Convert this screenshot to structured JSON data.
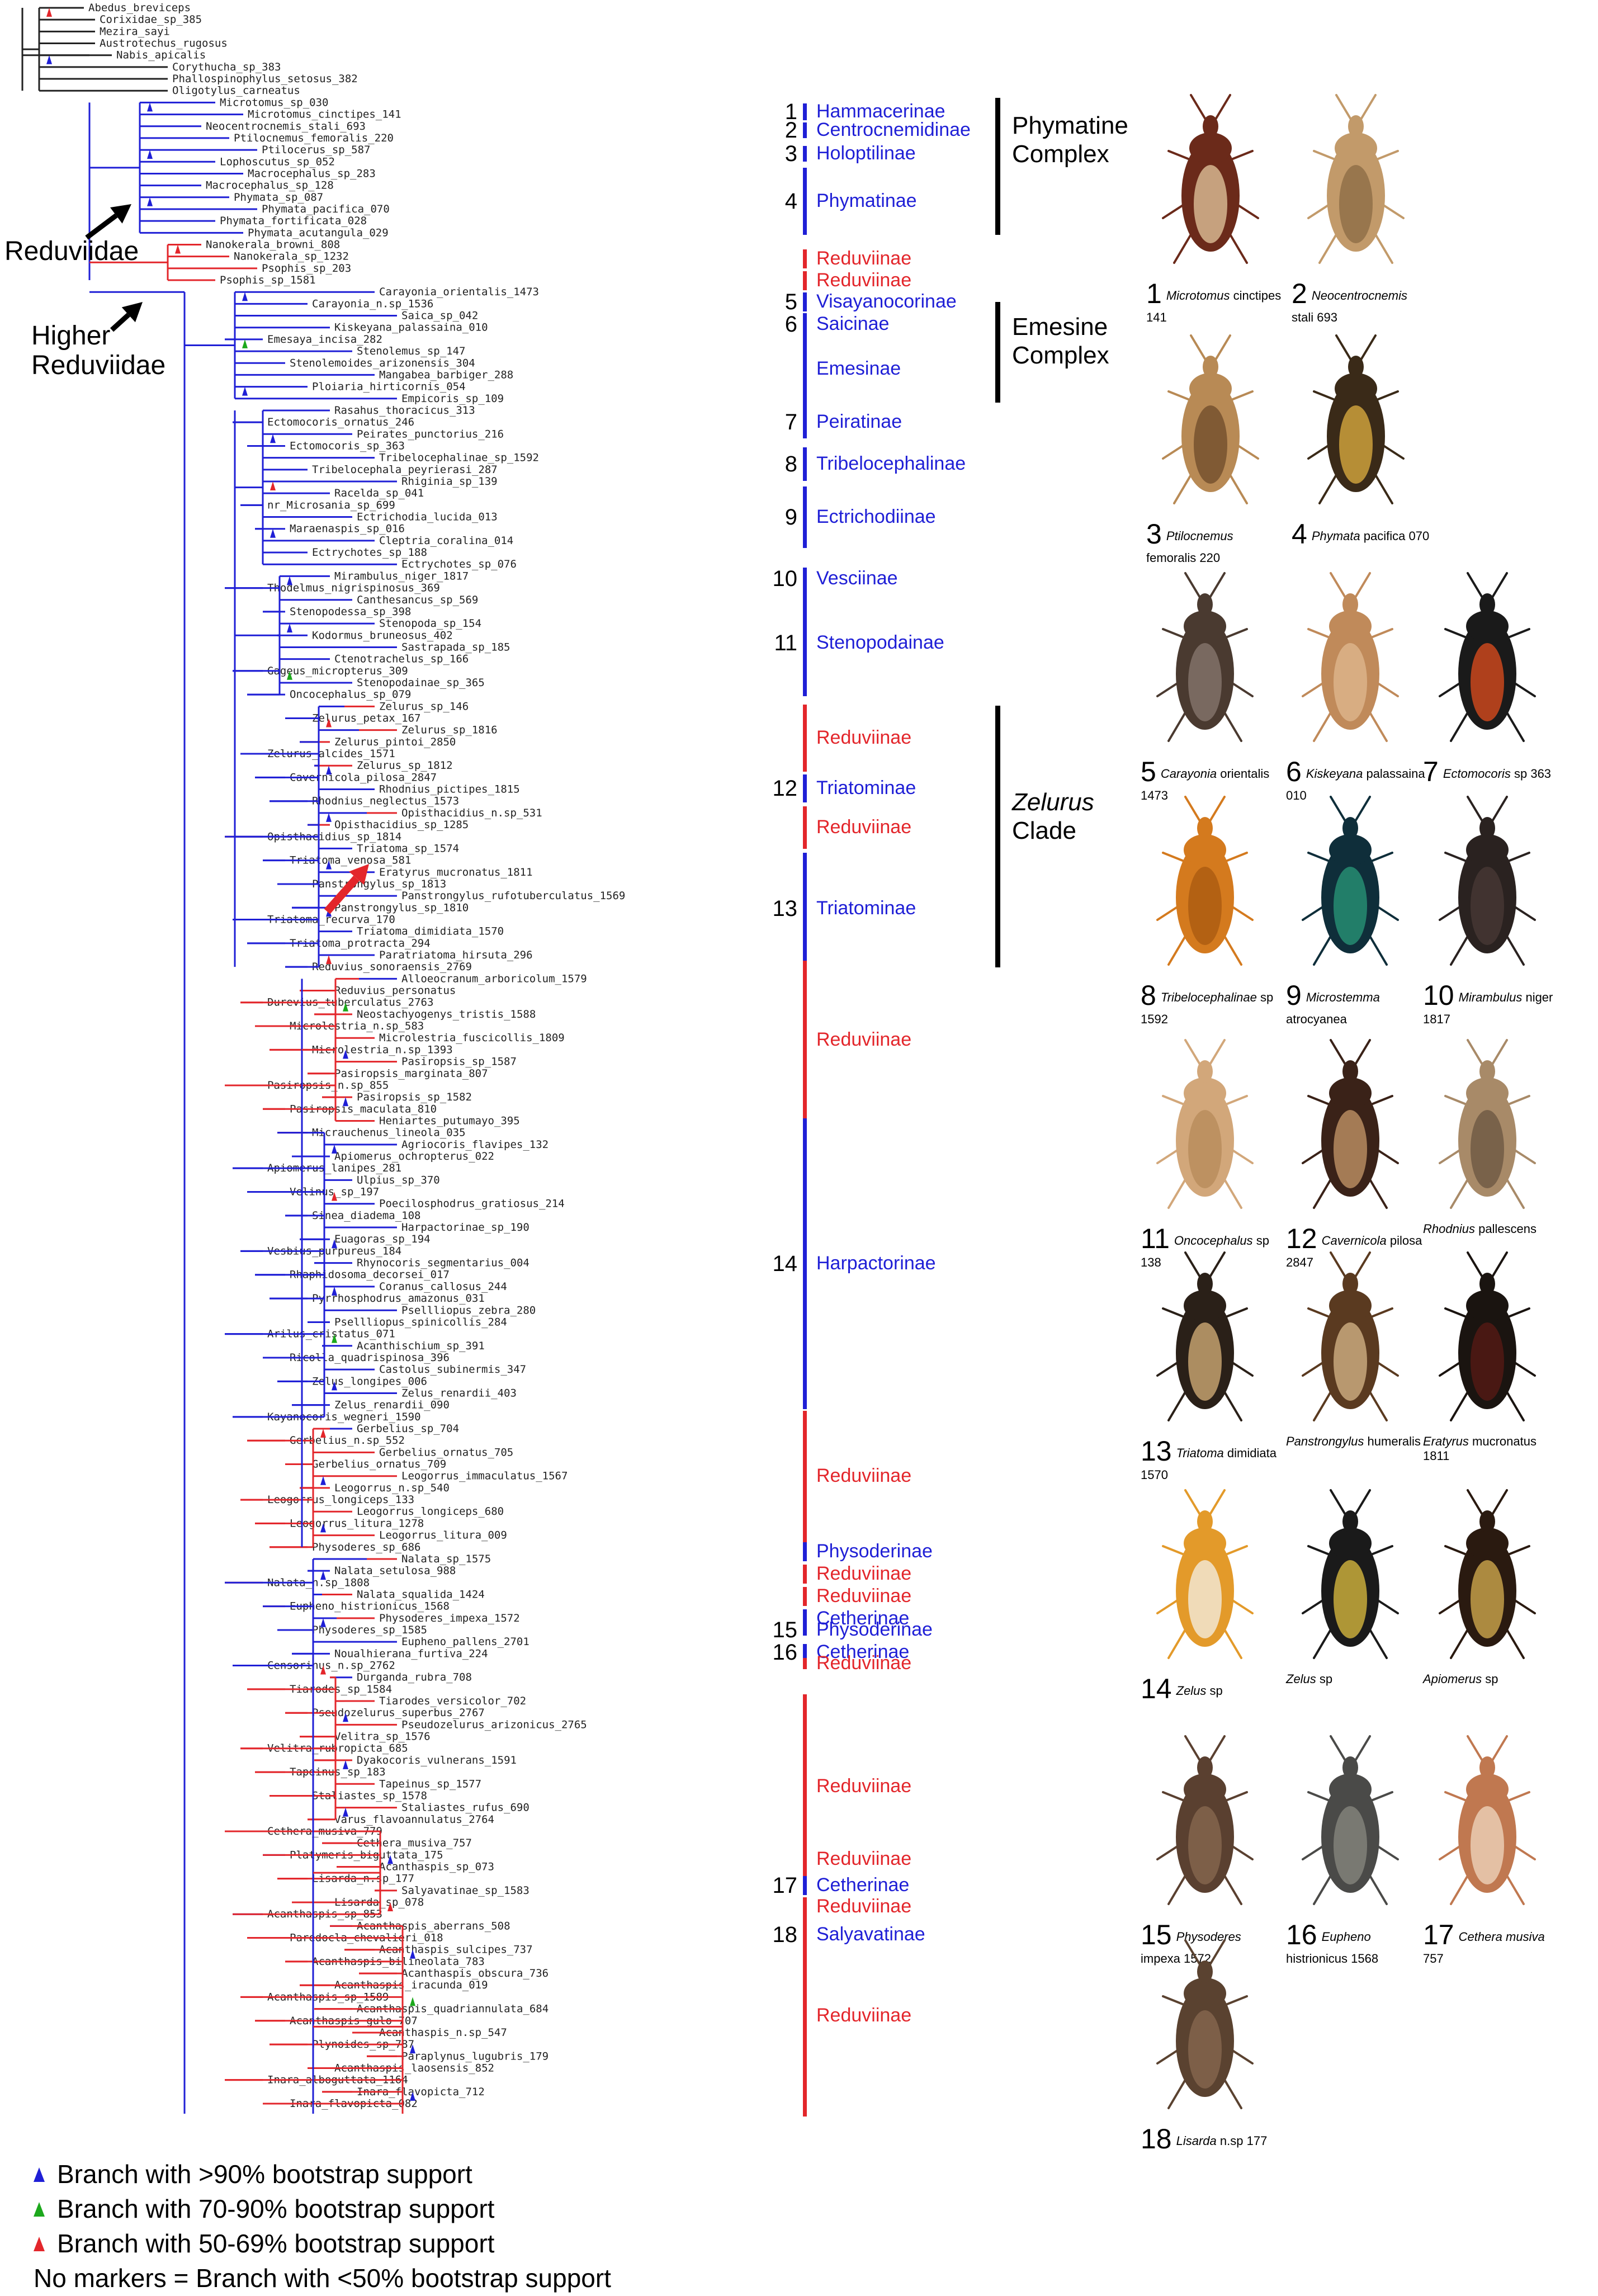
{
  "colors": {
    "blue": "#1f1fd6",
    "red": "#e3262b",
    "green": "#1ca81c",
    "black": "#222222"
  },
  "node_labels": {
    "reduviidae": "Reduviidae",
    "higher_1": "Higher",
    "higher_2": "Reduviidae"
  },
  "taxa": [
    "Abedus_breviceps",
    "Corixidae_sp_385",
    "Mezira_sayi",
    "Austrotechus_rugosus",
    "Nabis_apicalis",
    "Corythucha_sp_383",
    "Phallospinophylus_setosus_382",
    "Oligotylus_carneatus",
    "Microtomus_sp_030",
    "Microtomus_cinctipes_141",
    "Neocentrocnemis_stali_693",
    "Ptilocnemus_femoralis_220",
    "Ptilocerus_sp_587",
    "Lophoscutus_sp_052",
    "Macrocephalus_sp_283",
    "Macrocephalus_sp_128",
    "Phymata_sp_087",
    "Phymata_pacifica_070",
    "Phymata_fortificata_028",
    "Phymata_acutangula_029",
    "Nanokerala_browni_808",
    "Nanokerala_sp_1232",
    "Psophis_sp_203",
    "Psophis_sp_1581",
    "Carayonia_orientalis_1473",
    "Carayonia_n.sp_1536",
    "Saica_sp_042",
    "Kiskeyana_palassaina_010",
    "Emesaya_incisa_282",
    "Stenolemus_sp_147",
    "Stenolemoides_arizonensis_304",
    "Mangabea_barbiger_288",
    "Ploiaria_hirticornis_054",
    "Empicoris_sp_109",
    "Rasahus_thoracicus_313",
    "Ectomocoris_ornatus_246",
    "Peirates_punctorius_216",
    "Ectomocoris_sp_363",
    "Tribelocephalinae_sp_1592",
    "Tribelocephala_peyrierasi_287",
    "Rhiginia_sp_139",
    "Racelda_sp_041",
    "nr_Microsania_sp_699",
    "Ectrichodia_lucida_013",
    "Maraenaspis_sp_016",
    "Cleptria_coralina_014",
    "Ectrychotes_sp_188",
    "Ectrychotes_sp_076",
    "Mirambulus_niger_1817",
    "Thodelmus_nigrispinosus_369",
    "Canthesancus_sp_569",
    "Stenopodessa_sp_398",
    "Stenopoda_sp_154",
    "Kodormus_bruneosus_402",
    "Sastrapada_sp_185",
    "Ctenotrachelus_sp_166",
    "Gageus_micropterus_309",
    "Stenopodainae_sp_365",
    "Oncocephalus_sp_079",
    "Zelurus_sp_146",
    "Zelurus_petax_167",
    "Zelurus_sp_1816",
    "Zelurus_pintoi_2850",
    "Zelurus_alcides_1571",
    "Zelurus_sp_1812",
    "Cavernicola_pilosa_2847",
    "Rhodnius_pictipes_1815",
    "Rhodnius_neglectus_1573",
    "Opisthacidius_n.sp_531",
    "Opisthacidius_sp_1285",
    "Opisthacidius_sp_1814",
    "Triatoma_sp_1574",
    "Triatoma_venosa_581",
    "Eratyrus_mucronatus_1811",
    "Panstrongylus_sp_1813",
    "Panstrongylus_rufotuberculatus_1569",
    "Panstrongylus_sp_1810",
    "Triatoma_recurva_170",
    "Triatoma_dimidiata_1570",
    "Triatoma_protracta_294",
    "Paratriatoma_hirsuta_296",
    "Reduvius_sonoraensis_2769",
    "Alloeocranum_arboricolum_1579",
    "Reduvius_personatus",
    "Durevius_tuberculatus_2763",
    "Neostachyogenys_tristis_1588",
    "Microlestria_n.sp_583",
    "Microlestria_fuscicollis_1809",
    "Microlestria_n.sp_1393",
    "Pasiropsis_sp_1587",
    "Pasiropsis_marginata_807",
    "Pasiropsis_n.sp_855",
    "Pasiropsis_sp_1582",
    "Pasiropsis_maculata_810",
    "Heniartes_putumayo_395",
    "Micrauchenus_lineola_035",
    "Agriocoris_flavipes_132",
    "Apiomerus_ochropterus_022",
    "Apiomerus_lanipes_281",
    "Ulpius_sp_370",
    "Velinus_sp_197",
    "Poecilosphodrus_gratiosus_214",
    "Sinea_diadema_108",
    "Harpactorinae_sp_190",
    "Euagoras_sp_194",
    "Vesbius_purpureus_184",
    "Rhynocoris_segmentarius_004",
    "Rhaphidosoma_decorsei_017",
    "Coranus_callosus_244",
    "Pyrrhosphodrus_amazonus_031",
    "Psellliopus_zebra_280",
    "Psellliopus_spinicollis_284",
    "Arilus_cristatus_071",
    "Acanthischium_sp_391",
    "Ricolla_quadrispinosa_396",
    "Castolus_subinermis_347",
    "Zelus_longipes_006",
    "Zelus_renardii_403",
    "Zelus_renardii_090",
    "Kayanocoris_wegneri_1590",
    "Gerbelius_sp_704",
    "Gerbelius_n.sp_552",
    "Gerbelius_ornatus_705",
    "Gerbelius_ornatus_709",
    "Leogorrus_immaculatus_1567",
    "Leogorrus_n.sp_540",
    "Leogorrus_longiceps_133",
    "Leogorrus_longiceps_680",
    "Leogorrus_litura_1278",
    "Leogorrus_litura_009",
    "Physoderes_sp_686",
    "Nalata_sp_1575",
    "Nalata_setulosa_988",
    "Nalata_n.sp_1808",
    "Nalata_squalida_1424",
    "Eupheno_histrionicus_1568",
    "Physoderes_impexa_1572",
    "Physoderes_sp_1585",
    "Eupheno_pallens_2701",
    "Noualhierana_furtiva_224",
    "Censorinus_n.sp_2762",
    "Durganda_rubra_708",
    "Tiarodes_sp_1584",
    "Tiarodes_versicolor_702",
    "Pseudozelurus_superbus_2767",
    "Pseudozelurus_arizonicus_2765",
    "Velitra_sp_1576",
    "Velitra_rubropicta_685",
    "Dyakocoris_vulnerans_1591",
    "Tapeinus_sp_183",
    "Tapeinus_sp_1577",
    "Staliastes_sp_1578",
    "Staliastes_rufus_690",
    "Varus_flavoannulatus_2764",
    "Cethera_musiva_779",
    "Cethera_musiva_757",
    "Platymeris_biguttata_175",
    "Acanthaspis_sp_073",
    "Lisarda_n.sp_177",
    "Salyavatinae_sp_1583",
    "Lisarda_sp_078",
    "Acanthaspis_sp_853",
    "Acanthaspis_aberrans_508",
    "Paredocla_chevalieri_018",
    "Acanthaspis_sulcipes_737",
    "Acanthaspis_bilineolata_783",
    "Acanthaspis_obscura_736",
    "Acanthaspis_iracunda_019",
    "Acanthaspis_sp_1589",
    "Acanthaspis_quadriannulata_684",
    "Acanthaspis_gulo_707",
    "Acanthaspis_n.sp_547",
    "Plynoides_sp_787",
    "Paraplynus_lugubris_179",
    "Acanthaspis_laosensis_852",
    "Inara_alboguttata_1164",
    "Inara_flavopicta_712",
    "Inara_flavopicta_082"
  ],
  "clades": [
    {
      "num": "1",
      "name": "Hammacerinae",
      "color": "blue"
    },
    {
      "num": "2",
      "name": "Centrocnemidinae",
      "color": "blue"
    },
    {
      "num": "3",
      "name": "Holoptilinae",
      "color": "blue"
    },
    {
      "num": "4",
      "name": "Phymatinae",
      "color": "blue"
    },
    {
      "num": "",
      "name": "Reduviinae",
      "color": "red"
    },
    {
      "num": "",
      "name": "Reduviinae",
      "color": "red"
    },
    {
      "num": "5",
      "name": "Visayanocorinae",
      "color": "blue"
    },
    {
      "num": "6",
      "name": "Saicinae",
      "color": "blue"
    },
    {
      "num": "",
      "name": "Emesinae",
      "color": "blue"
    },
    {
      "num": "7",
      "name": "Peiratinae",
      "color": "blue"
    },
    {
      "num": "8",
      "name": "Tribelocephalinae",
      "color": "blue"
    },
    {
      "num": "9",
      "name": "Ectrichodiinae",
      "color": "blue"
    },
    {
      "num": "10",
      "name": "Vesciinae",
      "color": "blue"
    },
    {
      "num": "11",
      "name": "Stenopodainae",
      "color": "blue"
    },
    {
      "num": "",
      "name": "Reduviinae",
      "color": "red"
    },
    {
      "num": "12",
      "name": "Triatominae",
      "color": "blue"
    },
    {
      "num": "",
      "name": "Reduviinae",
      "color": "red"
    },
    {
      "num": "13",
      "name": "Triatominae",
      "color": "blue"
    },
    {
      "num": "",
      "name": "Reduviinae",
      "color": "red"
    },
    {
      "num": "14",
      "name": "Harpactorinae",
      "color": "blue"
    },
    {
      "num": "",
      "name": "Reduviinae",
      "color": "red"
    },
    {
      "num": "",
      "name": "Physoderinae",
      "color": "blue"
    },
    {
      "num": "",
      "name": "Reduviinae",
      "color": "red"
    },
    {
      "num": "",
      "name": "Reduviinae",
      "color": "red"
    },
    {
      "num": "",
      "name": "Cetherinae",
      "color": "blue"
    },
    {
      "num": "15",
      "name": "Physoderinae",
      "color": "blue"
    },
    {
      "num": "16",
      "name": "Cetherinae",
      "color": "blue"
    },
    {
      "num": "",
      "name": "Reduviinae",
      "color": "red"
    },
    {
      "num": "",
      "name": "Reduviinae",
      "color": "red"
    },
    {
      "num": "",
      "name": "Reduviinae",
      "color": "red"
    },
    {
      "num": "17",
      "name": "Cetherinae",
      "color": "blue"
    },
    {
      "num": "",
      "name": "Reduviinae",
      "color": "red"
    },
    {
      "num": "18",
      "name": "Salyavatinae",
      "color": "blue"
    },
    {
      "num": "",
      "name": "Reduviinae",
      "color": "red"
    }
  ],
  "complexes": [
    {
      "line1": "Phymatine",
      "line2": "Complex",
      "italic": false
    },
    {
      "line1": "Emesine",
      "line2": "Complex",
      "italic": false
    },
    {
      "line1": "Zelurus",
      "line2": "Clade",
      "italic": true
    }
  ],
  "photos": [
    {
      "num": "1",
      "genus": "Microtomus",
      "rest": "cinctipes 141",
      "body": "#6b2a1a",
      "accent": "#e4c9a0"
    },
    {
      "num": "2",
      "genus": "Neocentrocnemis",
      "rest": "stali 693",
      "body": "#c29a6a",
      "accent": "#8a6a44"
    },
    {
      "num": "3",
      "genus": "Ptilocnemus",
      "rest": "femoralis 220",
      "body": "#b88a55",
      "accent": "#6e4a2a"
    },
    {
      "num": "4",
      "genus": "Phymata",
      "rest": "pacifica 070",
      "body": "#3a2a18",
      "accent": "#e0b040"
    },
    {
      "num": "5",
      "genus": "Carayonia",
      "rest": "orientalis 1473",
      "body": "#4a3a30",
      "accent": "#8a7a70"
    },
    {
      "num": "6",
      "genus": "Kiskeyana",
      "rest": "palassaina 010",
      "body": "#c08a5a",
      "accent": "#e0b890"
    },
    {
      "num": "7",
      "genus": "Ectomocoris",
      "rest": "sp 363",
      "body": "#1a1a1a",
      "accent": "#e24d1e"
    },
    {
      "num": "8",
      "genus": "Tribelocephalinae",
      "rest": "sp 1592",
      "body": "#d47a1e",
      "accent": "#a85a10"
    },
    {
      "num": "9",
      "genus": "Microstemma",
      "rest": "atrocyanea",
      "body": "#0f2e3a",
      "accent": "#2a9a7a"
    },
    {
      "num": "10",
      "genus": "Mirambulus",
      "rest": "niger 1817",
      "body": "#2a2220",
      "accent": "#4a3a35"
    },
    {
      "num": "11",
      "genus": "Oncocephalus",
      "rest": "sp 138",
      "body": "#d2a77a",
      "accent": "#b58a5a"
    },
    {
      "num": "12",
      "genus": "Cavernicola",
      "rest": "pilosa 2847",
      "body": "#3a2218",
      "accent": "#c89a6a"
    },
    {
      "num": "",
      "genus": "Rhodnius",
      "rest": "pallescens",
      "body": "#a88a68",
      "accent": "#6a5440"
    },
    {
      "num": "13",
      "genus": "Triatoma",
      "rest": "dimidiata 1570",
      "body": "#2a2018",
      "accent": "#d8b27a"
    },
    {
      "num": "",
      "genus": "Panstrongylus",
      "rest": "humeralis",
      "body": "#5a3a20",
      "accent": "#d8b88a"
    },
    {
      "num": "",
      "genus": "Eratyrus",
      "rest": "mucronatus 1811",
      "body": "#1a1410",
      "accent": "#5a1a14"
    },
    {
      "num": "14",
      "genus": "Zelus",
      "rest": "sp",
      "body": "#e39a2a",
      "accent": "#f4f0e8"
    },
    {
      "num": "",
      "genus": "Zelus",
      "rest": "sp",
      "body": "#1a1a1a",
      "accent": "#e0c040"
    },
    {
      "num": "",
      "genus": "Apiomerus",
      "rest": "sp",
      "body": "#2a1a10",
      "accent": "#d8b050"
    },
    {
      "num": "15",
      "genus": "Physoderes",
      "rest": "impexa 1572",
      "body": "#5a4030",
      "accent": "#8a6a50"
    },
    {
      "num": "16",
      "genus": "Eupheno",
      "rest": "histrionicus 1568",
      "body": "#4a4a48",
      "accent": "#8a8a80"
    },
    {
      "num": "17",
      "genus": "Cethera musiva",
      "rest": "757",
      "body": "#c07850",
      "accent": "#f0d8c0"
    },
    {
      "num": "18",
      "genus": "Lisarda",
      "rest": "n.sp 177",
      "body": "#5a4230",
      "accent": "#8a6a50"
    }
  ],
  "legend": [
    {
      "text": "Branch with >90% bootstrap support",
      "color": "blue"
    },
    {
      "text": "Branch with 70-90% bootstrap support",
      "color": "green"
    },
    {
      "text": "Branch with 50-69% bootstrap support",
      "color": "red"
    },
    {
      "text": "No markers = Branch with <50% bootstrap support",
      "color": ""
    }
  ]
}
